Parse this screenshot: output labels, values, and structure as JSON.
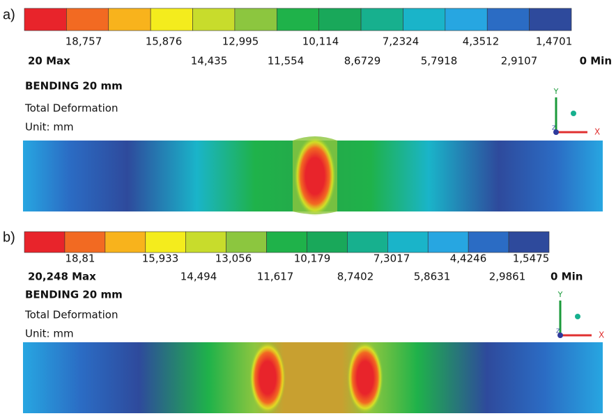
{
  "panels": [
    {
      "label": "a)",
      "title": "BENDING 20 mm",
      "subtitle": "Total Deformation",
      "unit": "Unit: mm",
      "axes": {
        "y": "Y",
        "x": "X",
        "z": "Z"
      },
      "legend": {
        "colors": [
          "#e8242b",
          "#f26a22",
          "#f8b31c",
          "#f4ec1d",
          "#c8dc2c",
          "#8cc63f",
          "#1fb24a",
          "#19a85a",
          "#17b08e",
          "#1ab4c9",
          "#27a6e1",
          "#2b6cc4",
          "#2e4a9c"
        ],
        "max": "20 Max",
        "min": "0 Min",
        "upper_labels": [
          "18,757",
          "15,876",
          "12,995",
          "10,114",
          "7,2324",
          "4,3512",
          "1,4701"
        ],
        "lower_labels": [
          "14,435",
          "11,554",
          "8,6729",
          "5,7918",
          "2,9107"
        ]
      }
    },
    {
      "label": "b)",
      "title": "BENDING 20 mm",
      "subtitle": "Total Deformation",
      "unit": "Unit: mm",
      "axes": {
        "y": "Y",
        "x": "X",
        "z": "Z"
      },
      "legend": {
        "colors": [
          "#e8242b",
          "#f26a22",
          "#f8b31c",
          "#f4ec1d",
          "#c8dc2c",
          "#8cc63f",
          "#1fb24a",
          "#19a85a",
          "#17b08e",
          "#1ab4c9",
          "#27a6e1",
          "#2b6cc4",
          "#2e4a9c"
        ],
        "max": "20,248 Max",
        "min": "0 Min",
        "upper_labels": [
          "18,81",
          "15,933",
          "13,056",
          "10,179",
          "7,3017",
          "4,4246",
          "1,5475"
        ],
        "lower_labels": [
          "14,494",
          "11,617",
          "8,7402",
          "5,8631",
          "2,9861"
        ]
      }
    }
  ]
}
